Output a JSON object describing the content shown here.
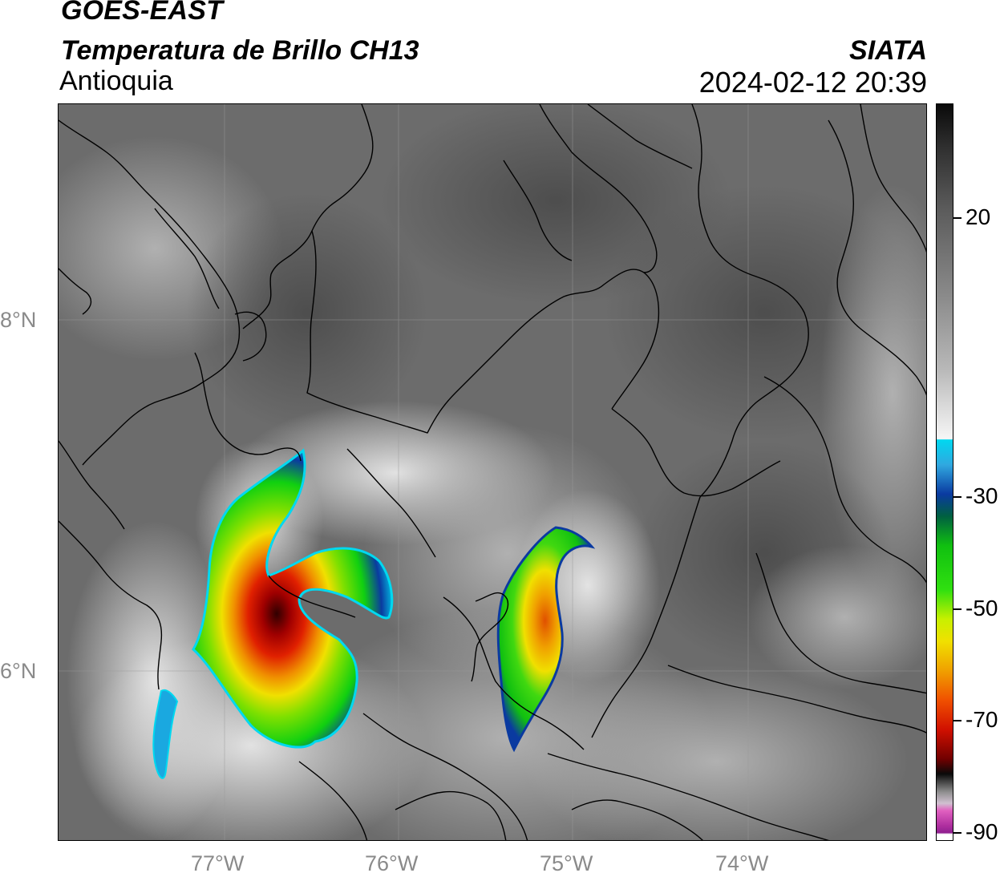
{
  "header": {
    "satellite": "GOES-EAST",
    "product": "Temperatura de Brillo CH13",
    "region": "Antioquia",
    "organization": "SIATA",
    "datetime": "2024-02-12 20:39"
  },
  "map": {
    "latitude_labels": [
      "8°N",
      "6°N"
    ],
    "longitude_labels": [
      "77°W",
      "76°W",
      "75°W",
      "74°W"
    ]
  },
  "colorbar": {
    "tick_labels": [
      "20",
      "-30",
      "-50",
      "-70",
      "-90"
    ],
    "colors": {
      "cyan": "#00d8f0",
      "blue": "#0a3aa0",
      "green": "#10d010",
      "yellow": "#f0f000",
      "orange": "#f08800",
      "red": "#d01000",
      "dark_red": "#500000",
      "magenta": "#e040c0",
      "purple": "#902090"
    }
  }
}
